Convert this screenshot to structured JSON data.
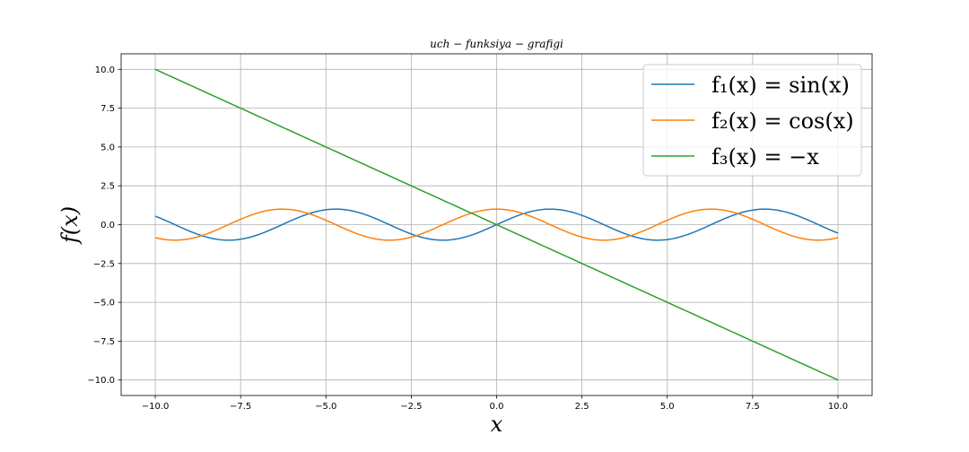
{
  "chart_data": {
    "type": "line",
    "title": "uch − funksiya − grafigi",
    "xlabel": "x",
    "ylabel": "f(x)",
    "xlim": [
      -11.0,
      11.0
    ],
    "ylim": [
      -11.0,
      11.0
    ],
    "xticks": [
      -10.0,
      -7.5,
      -5.0,
      -2.5,
      0.0,
      2.5,
      5.0,
      7.5,
      10.0
    ],
    "xtick_labels": [
      "−10.0",
      "−7.5",
      "−5.0",
      "−2.5",
      "0.0",
      "2.5",
      "5.0",
      "7.5",
      "10.0"
    ],
    "yticks": [
      -10.0,
      -7.5,
      -5.0,
      -2.5,
      0.0,
      2.5,
      5.0,
      7.5,
      10.0
    ],
    "ytick_labels": [
      "−10.0",
      "−7.5",
      "−5.0",
      "−2.5",
      "0.0",
      "2.5",
      "5.0",
      "7.5",
      "10.0"
    ],
    "grid": true,
    "legend_position": "upper-right",
    "x_range": [
      -10,
      10
    ],
    "series": [
      {
        "name": "f₁(x) = sin(x)",
        "function": "sin(x)",
        "color": "#1f77b4"
      },
      {
        "name": "f₂(x) = cos(x)",
        "function": "cos(x)",
        "color": "#ff7f0e"
      },
      {
        "name": "f₃(x) = −x",
        "function": "-x",
        "color": "#2ca02c"
      }
    ]
  }
}
